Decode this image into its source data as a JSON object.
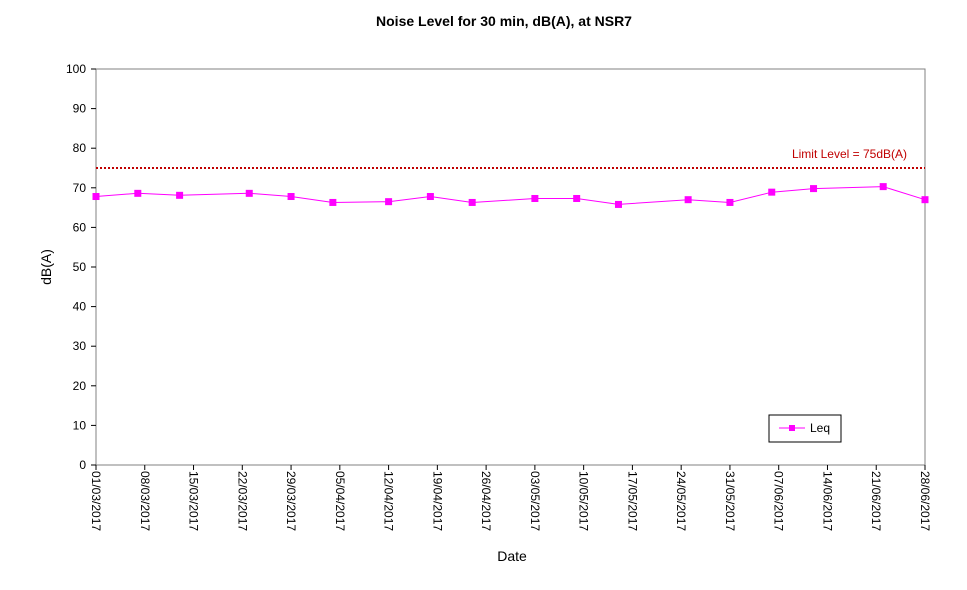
{
  "chart_data": {
    "type": "line",
    "title": "Noise Level for 30 min, dB(A), at NSR7",
    "xlabel": "Date",
    "ylabel": "dB(A)",
    "ylim": [
      0,
      100
    ],
    "yticks": [
      0,
      10,
      20,
      30,
      40,
      50,
      60,
      70,
      80,
      90,
      100
    ],
    "xlim": [
      "2017-03-01",
      "2017-06-28"
    ],
    "xtick_labels": [
      "01/03/2017",
      "08/03/2017",
      "15/03/2017",
      "22/03/2017",
      "29/03/2017",
      "05/04/2017",
      "12/04/2017",
      "19/04/2017",
      "26/04/2017",
      "03/05/2017",
      "10/05/2017",
      "17/05/2017",
      "24/05/2017",
      "31/05/2017",
      "07/06/2017",
      "14/06/2017",
      "21/06/2017",
      "28/06/2017"
    ],
    "xticks": [
      "2017-03-01",
      "2017-03-08",
      "2017-03-15",
      "2017-03-22",
      "2017-03-29",
      "2017-04-05",
      "2017-04-12",
      "2017-04-19",
      "2017-04-26",
      "2017-05-03",
      "2017-05-10",
      "2017-05-17",
      "2017-05-24",
      "2017-05-31",
      "2017-06-07",
      "2017-06-14",
      "2017-06-21",
      "2017-06-28"
    ],
    "grid": false,
    "legend_position": "bottom-right",
    "series": [
      {
        "name": "Leq",
        "color": "#ff00ff",
        "marker": "square",
        "points": [
          {
            "x": "2017-03-01",
            "y": 67.8
          },
          {
            "x": "2017-03-07",
            "y": 68.6
          },
          {
            "x": "2017-03-13",
            "y": 68.1
          },
          {
            "x": "2017-03-23",
            "y": 68.6
          },
          {
            "x": "2017-03-29",
            "y": 67.8
          },
          {
            "x": "2017-04-04",
            "y": 66.3
          },
          {
            "x": "2017-04-12",
            "y": 66.5
          },
          {
            "x": "2017-04-18",
            "y": 67.8
          },
          {
            "x": "2017-04-24",
            "y": 66.3
          },
          {
            "x": "2017-05-03",
            "y": 67.3
          },
          {
            "x": "2017-05-09",
            "y": 67.3
          },
          {
            "x": "2017-05-15",
            "y": 65.8
          },
          {
            "x": "2017-05-25",
            "y": 67.0
          },
          {
            "x": "2017-05-31",
            "y": 66.3
          },
          {
            "x": "2017-06-06",
            "y": 68.9
          },
          {
            "x": "2017-06-12",
            "y": 69.8
          },
          {
            "x": "2017-06-22",
            "y": 70.3
          },
          {
            "x": "2017-06-28",
            "y": 67.0
          }
        ]
      }
    ],
    "limit_line": {
      "value": 75,
      "label": "Limit Level  = 75dB(A)",
      "color": "#c00000"
    }
  }
}
